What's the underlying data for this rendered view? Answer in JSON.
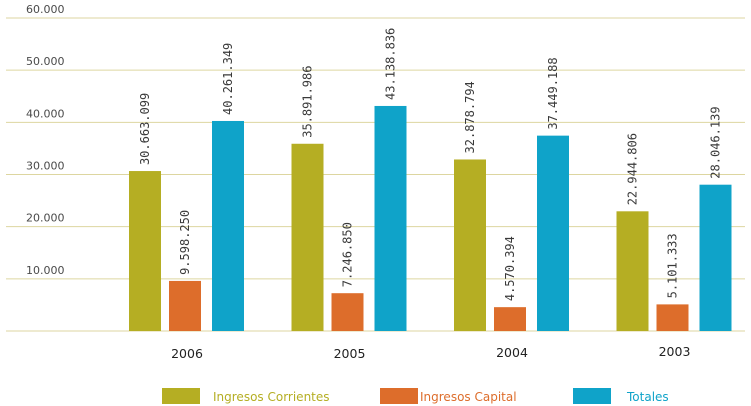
{
  "chart_data": {
    "type": "bar",
    "categories": [
      "2006",
      "2005",
      "2004",
      "2003"
    ],
    "series": [
      {
        "name": "Ingresos Corrientes",
        "color": "#b5ae23",
        "values": [
          30663.099,
          35891.986,
          32878.794,
          22944.806
        ],
        "labels": [
          "30.663.099",
          "35.891.986",
          "32.878.794",
          "22.944.806"
        ]
      },
      {
        "name": "Ingresos Capital",
        "color": "#dd6d2b",
        "values": [
          9598.25,
          7246.85,
          4570.394,
          5101.333
        ],
        "labels": [
          "9.598.250",
          "7.246.850",
          "4.570.394",
          "5.101.333"
        ]
      },
      {
        "name": "Totales",
        "color": "#0fa3c9",
        "values": [
          40261.349,
          43138.836,
          37449.188,
          28046.139
        ],
        "labels": [
          "40.261.349",
          "43.138.836",
          "37.449.188",
          "28.046.139"
        ]
      }
    ],
    "yticks": [
      10000,
      20000,
      30000,
      40000,
      50000,
      60000
    ],
    "ytick_labels": [
      "10.000",
      "20.000",
      "30.000",
      "40.000",
      "50.000",
      "60.000"
    ],
    "ylim": [
      0,
      60000
    ],
    "grid": true,
    "legend": "bottom"
  }
}
